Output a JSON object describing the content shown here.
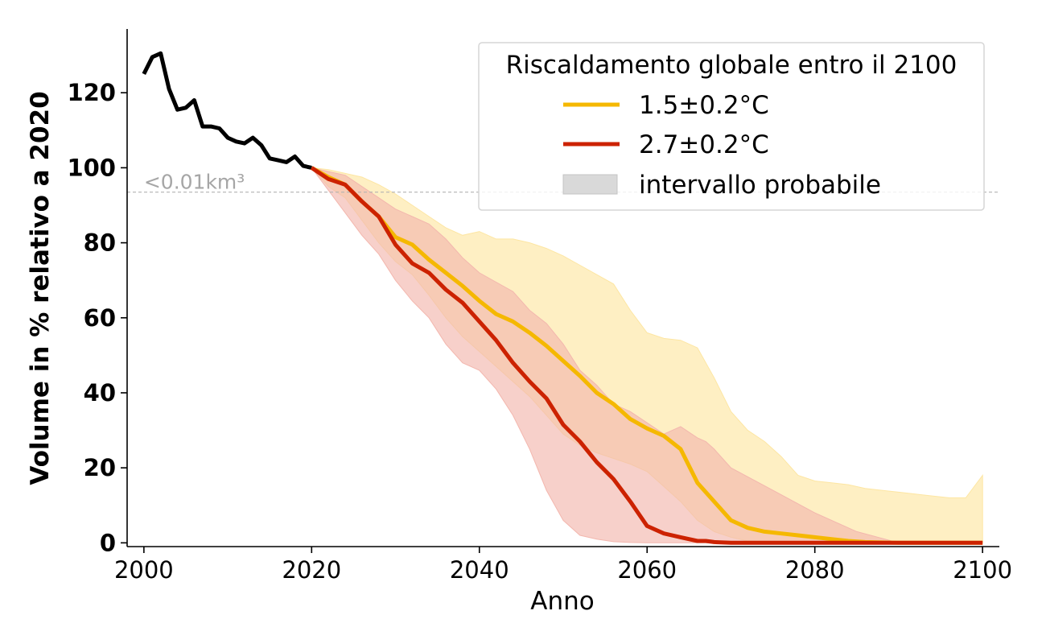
{
  "chart_data": {
    "type": "line",
    "xlabel": "Anno",
    "ylabel": "Volume in % relativo a 2020",
    "xlim": [
      1998,
      2102
    ],
    "ylim": [
      -1,
      137
    ],
    "x_ticks": [
      2000,
      2020,
      2040,
      2060,
      2080,
      2100
    ],
    "y_ticks": [
      0,
      20,
      40,
      60,
      80,
      100,
      120
    ],
    "grid": false,
    "reference_line": {
      "y": 93.5,
      "label": "<0.01km³",
      "color": "#b3b3b3"
    },
    "legend": {
      "title": "Riscaldamento globale entro il 2100",
      "placement": "top-right",
      "entries": [
        {
          "label": "1.5±0.2°C",
          "kind": "line",
          "color": "#f5b800"
        },
        {
          "label": "2.7±0.2°C",
          "kind": "line",
          "color": "#cc2200"
        },
        {
          "label": "intervallo probabile",
          "kind": "patch",
          "color": "#d9d9d9"
        }
      ]
    },
    "series": [
      {
        "id": "observed",
        "color": "#000000",
        "x": [
          2000,
          2001,
          2002,
          2003,
          2004,
          2005,
          2006,
          2007,
          2008,
          2009,
          2010,
          2011,
          2012,
          2013,
          2014,
          2015,
          2016,
          2017,
          2018,
          2019,
          2020
        ],
        "y": [
          125,
          129.5,
          130.5,
          121,
          115.5,
          116,
          118,
          111,
          111,
          110.5,
          108,
          107,
          106.5,
          108,
          106,
          102.5,
          102,
          101.5,
          103,
          100.5,
          100
        ]
      },
      {
        "id": "ssp-1.5",
        "name": "1.5±0.2°C",
        "color": "#f5b800",
        "band_color": "#fde6a3",
        "x": [
          2020,
          2022,
          2024,
          2026,
          2028,
          2030,
          2032,
          2034,
          2036,
          2038,
          2040,
          2042,
          2044,
          2046,
          2048,
          2050,
          2052,
          2054,
          2056,
          2058,
          2060,
          2062,
          2064,
          2066,
          2068,
          2070,
          2072,
          2074,
          2076,
          2078,
          2080,
          2082,
          2084,
          2086,
          2088,
          2090,
          2092,
          2094,
          2096,
          2098,
          2100
        ],
        "y": [
          100,
          97.5,
          95.5,
          91,
          87,
          81.5,
          79.5,
          75.5,
          72,
          68.5,
          64.5,
          61,
          59,
          56,
          52.5,
          48.5,
          44.5,
          40,
          37,
          33,
          30.5,
          28.5,
          25,
          16,
          11,
          6,
          4,
          3,
          2.5,
          2,
          1.5,
          1,
          0.5,
          0.2,
          0.1,
          0,
          0,
          0,
          0,
          0,
          0
        ],
        "upper": [
          100,
          99.5,
          98.5,
          97.5,
          95.5,
          93,
          90,
          87,
          84,
          82,
          83,
          81,
          81,
          80,
          78.5,
          76.5,
          74,
          71.5,
          69,
          62,
          56,
          54.5,
          54,
          52,
          44,
          35,
          30,
          27,
          23,
          18,
          16.5,
          16,
          15.5,
          14.5,
          14,
          13.5,
          13,
          12.5,
          12,
          12,
          18
        ],
        "lower": [
          100,
          95,
          92,
          86,
          80,
          75,
          71.5,
          66,
          60,
          55,
          51,
          47,
          43,
          39,
          34,
          29,
          26,
          24,
          22.5,
          21,
          19,
          15,
          11,
          6,
          3,
          1.5,
          0.5,
          0.2,
          0.1,
          0,
          0,
          0,
          0,
          0,
          0,
          0,
          0,
          0,
          0,
          0,
          0
        ]
      },
      {
        "id": "ssp-2.7",
        "name": "2.7±0.2°C",
        "color": "#cc2200",
        "band_color": "#f3b7ae",
        "x": [
          2020,
          2022,
          2024,
          2026,
          2028,
          2030,
          2032,
          2034,
          2036,
          2038,
          2040,
          2042,
          2044,
          2046,
          2048,
          2050,
          2052,
          2054,
          2056,
          2058,
          2060,
          2062,
          2064,
          2066,
          2067,
          2068,
          2070,
          2075,
          2080,
          2085,
          2090,
          2095,
          2100
        ],
        "y": [
          100,
          97,
          95.5,
          91,
          87,
          79.5,
          74.5,
          72,
          67.5,
          64,
          59,
          54,
          48,
          43,
          38.5,
          31.5,
          27,
          21.5,
          17,
          11,
          4.5,
          2.5,
          1.5,
          0.5,
          0.5,
          0.2,
          0,
          0,
          0,
          0,
          0,
          0,
          0
        ],
        "upper": [
          100,
          99,
          98,
          95,
          92,
          89,
          87,
          85,
          81,
          76,
          72,
          69.5,
          67,
          62,
          58.5,
          53,
          46,
          42,
          37,
          35,
          32,
          29,
          31,
          28,
          27,
          25,
          20,
          14,
          8,
          3,
          0,
          0,
          0
        ],
        "lower": [
          100,
          94,
          88,
          82,
          77,
          70,
          64.5,
          60,
          53,
          48,
          46,
          41,
          34,
          25,
          14,
          6,
          2,
          1,
          0.3,
          0.1,
          0,
          0,
          0,
          0,
          0,
          0,
          0,
          0,
          0,
          0,
          0,
          0,
          0
        ]
      }
    ]
  }
}
